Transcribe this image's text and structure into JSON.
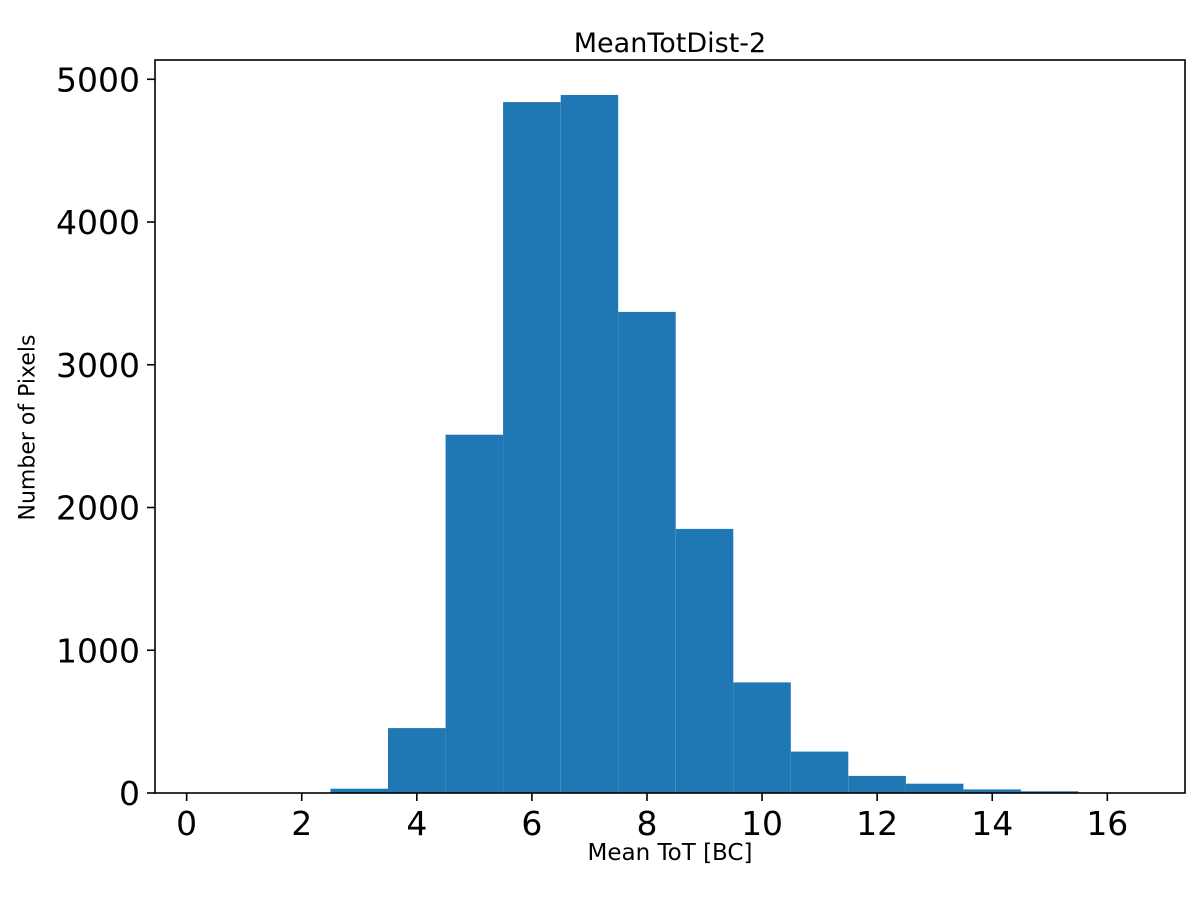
{
  "chart_data": {
    "type": "bar",
    "subtype": "histogram",
    "title": "MeanTotDist-2",
    "xlabel": "Mean ToT [BC]",
    "ylabel": "Number of Pixels",
    "bin_edges": [
      2.5,
      3.5,
      4.5,
      5.5,
      6.5,
      7.5,
      8.5,
      9.5,
      10.5,
      11.5,
      12.5,
      13.5,
      14.5,
      15.5
    ],
    "counts": [
      30,
      455,
      2510,
      4840,
      4890,
      3370,
      1850,
      775,
      290,
      120,
      65,
      25,
      12
    ],
    "xlim": [
      -0.55,
      17.35
    ],
    "ylim": [
      0,
      5135
    ],
    "xticks": [
      0,
      2,
      4,
      6,
      8,
      10,
      12,
      14,
      16
    ],
    "yticks": [
      0,
      1000,
      2000,
      3000,
      4000,
      5000
    ],
    "bar_color": "#1f77b4",
    "spine_color": "#000000",
    "grid": false,
    "legend": null
  }
}
